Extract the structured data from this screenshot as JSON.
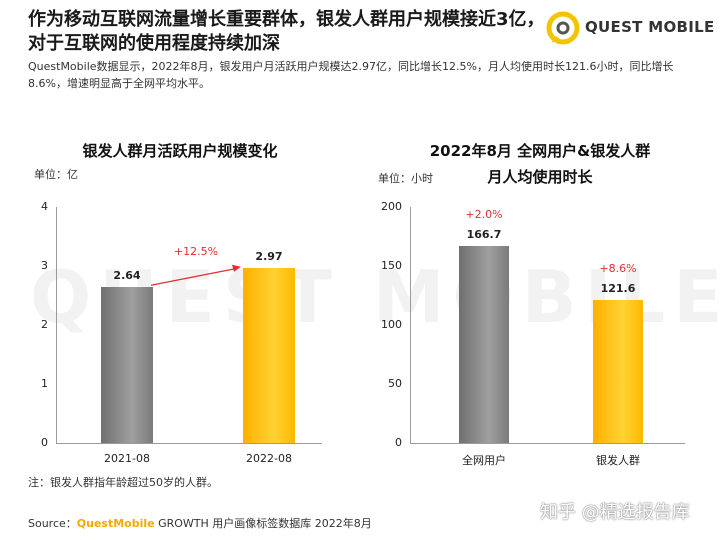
{
  "header": {
    "headline": "作为移动互联网流量增长重要群体，银发人群用户规模接近3亿，对于互联网的使用程度持续加深",
    "summary": "QuestMobile数据显示，2022年8月，银发用户月活跃用户规模达2.97亿，同比增长12.5%，月人均使用时长121.6小时，同比增长8.6%，增速明显高于全网平均水平。",
    "logo_text": "QUEST MOBILE",
    "watermark_text": "QUEST MOBILE"
  },
  "chart_data": [
    {
      "type": "bar",
      "title": "银发人群月活跃用户规模变化",
      "unit_label": "单位：亿",
      "categories": [
        "2021-08",
        "2022-08"
      ],
      "values": [
        2.64,
        2.97
      ],
      "value_labels": [
        "2.64",
        "2.97"
      ],
      "ylim": [
        0,
        4
      ],
      "yticks": [
        0,
        1,
        2,
        3,
        4
      ],
      "ytick_labels": [
        "0",
        "1",
        "2",
        "3",
        "4"
      ],
      "annotations": [
        {
          "text": "+12.5%",
          "from": "2021-08",
          "to": "2022-08",
          "color": "#e03030"
        }
      ],
      "colors": [
        "#8a8a8a",
        "#ffc000"
      ]
    },
    {
      "type": "bar",
      "title_line1": "2022年8月 全网用户&银发人群",
      "title_line2": "月人均使用时长",
      "unit_label": "单位：小时",
      "categories": [
        "全网用户",
        "银发人群"
      ],
      "values": [
        166.7,
        121.6
      ],
      "value_labels": [
        "166.7",
        "121.6"
      ],
      "growth_labels": [
        "+2.0%",
        "+8.6%"
      ],
      "ylim": [
        0,
        200
      ],
      "yticks": [
        0,
        50,
        100,
        150,
        200
      ],
      "ytick_labels": [
        "0",
        "50",
        "100",
        "150",
        "200"
      ],
      "colors": [
        "#8a8a8a",
        "#ffc000"
      ]
    }
  ],
  "footer": {
    "note": "注：银发人群指年龄超过50岁的人群。",
    "source_prefix": "Source：",
    "source_brand": "QuestMobile",
    "source_rest": " GROWTH 用户画像标签数据库 2022年8月",
    "zhihu_watermark": "知乎 @精选报告库"
  },
  "colors": {
    "accent": "#f5a800",
    "growth_red": "#e03030",
    "bar_gray": "#8a8a8a",
    "bar_yellow": "#ffc000"
  }
}
